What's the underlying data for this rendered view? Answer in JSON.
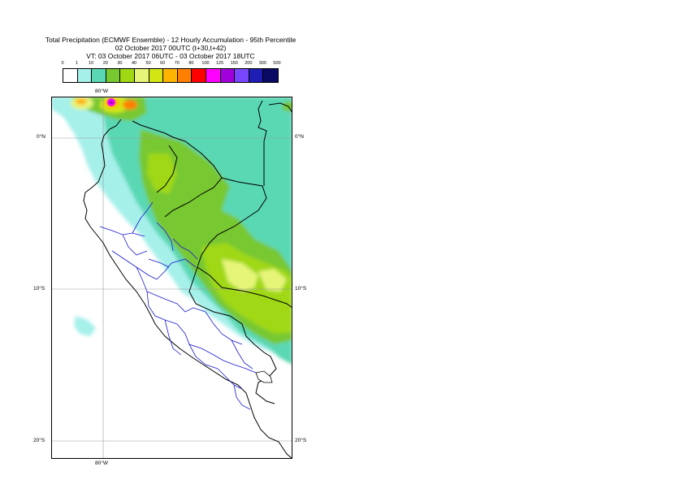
{
  "title": {
    "line1": "Total Precipitation (ECMWF Ensemble) - 12 Hourly Accumulation - 95th Percentile",
    "line2": "02 October 2017 00UTC (t+30,t+42)",
    "line3": "VT: 03 October 2017 06UTC - 03 October 2017 18UTC"
  },
  "legend": {
    "labels": [
      "0",
      "1",
      "10",
      "20",
      "30",
      "40",
      "50",
      "60",
      "70",
      "80",
      "100",
      "125",
      "150",
      "200",
      "300",
      "500"
    ],
    "colors": [
      "#ffffff",
      "#a6f0ea",
      "#5ad8b4",
      "#78c832",
      "#a0d814",
      "#e6f578",
      "#d2e614",
      "#ffb400",
      "#ff7f00",
      "#ff0000",
      "#ff00ff",
      "#a000dc",
      "#7846ff",
      "#1e1eb4",
      "#0a0a64"
    ]
  },
  "map": {
    "lat_labels": [
      "0°N",
      "10°S",
      "20°S"
    ],
    "lon_label": "80°W"
  }
}
